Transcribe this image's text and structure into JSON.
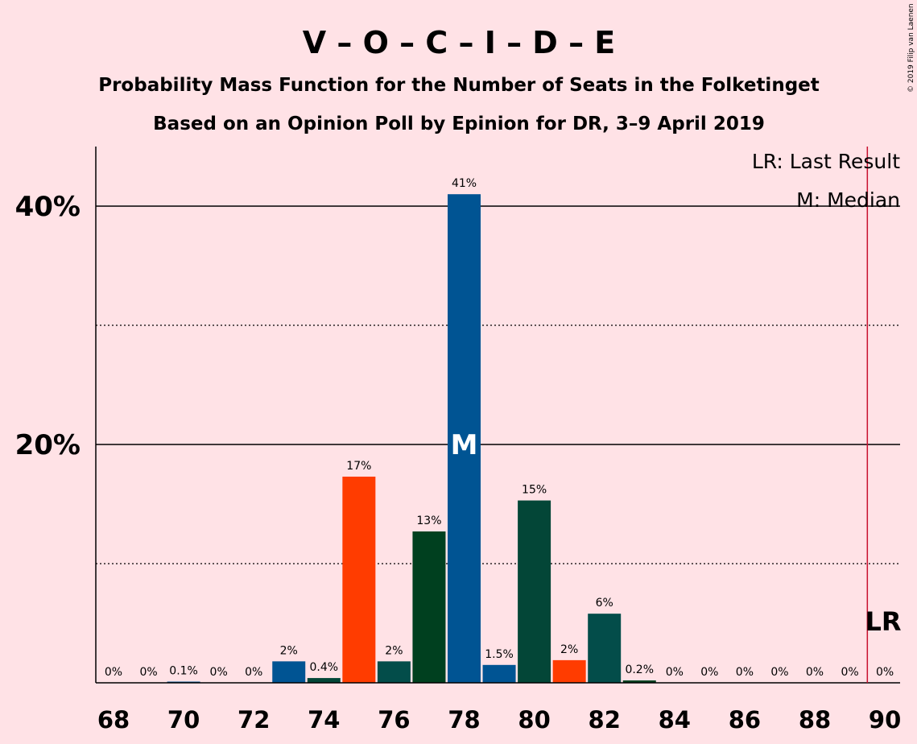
{
  "chart_data": {
    "type": "bar",
    "title": "V – O – C – I – D – E",
    "subtitle_lines": [
      "Probability Mass Function for the Number of Seats in the Folketinget",
      "Based on an Opinion Poll by Epinion for DR, 3–9 April 2019"
    ],
    "copyright": "© 2019 Filip van Laenen",
    "x_range": [
      68,
      90
    ],
    "x_tick_labels": [
      "68",
      "70",
      "72",
      "74",
      "76",
      "78",
      "80",
      "82",
      "84",
      "86",
      "88",
      "90"
    ],
    "ylim": [
      0,
      45
    ],
    "y_major_ticks": [
      {
        "value": 20,
        "label": "20%"
      },
      {
        "value": 40,
        "label": "40%"
      }
    ],
    "y_minor_gridlines": [
      10,
      30
    ],
    "bars": [
      {
        "seats": 68,
        "value": 0,
        "label": "0%",
        "color": "#005493"
      },
      {
        "seats": 69,
        "value": 0,
        "label": "0%",
        "color": "#005493"
      },
      {
        "seats": 70,
        "value": 0.1,
        "label": "0.1%",
        "color": "#005493"
      },
      {
        "seats": 71,
        "value": 0,
        "label": "0%",
        "color": "#005493"
      },
      {
        "seats": 72,
        "value": 0,
        "label": "0%",
        "color": "#005493"
      },
      {
        "seats": 73,
        "value": 1.8,
        "label": "2%",
        "color": "#005493"
      },
      {
        "seats": 74,
        "value": 0.4,
        "label": "0.4%",
        "color": "#034637"
      },
      {
        "seats": 75,
        "value": 17.3,
        "label": "17%",
        "color": "#FF3C00"
      },
      {
        "seats": 76,
        "value": 1.8,
        "label": "2%",
        "color": "#034D4A"
      },
      {
        "seats": 77,
        "value": 12.7,
        "label": "13%",
        "color": "#00401F"
      },
      {
        "seats": 78,
        "value": 41,
        "label": "41%",
        "color": "#005493"
      },
      {
        "seats": 79,
        "value": 1.5,
        "label": "1.5%",
        "color": "#005493"
      },
      {
        "seats": 80,
        "value": 15.3,
        "label": "15%",
        "color": "#034637"
      },
      {
        "seats": 81,
        "value": 1.9,
        "label": "2%",
        "color": "#FF3C00"
      },
      {
        "seats": 82,
        "value": 5.8,
        "label": "6%",
        "color": "#034D4A"
      },
      {
        "seats": 83,
        "value": 0.2,
        "label": "0.2%",
        "color": "#00401F"
      },
      {
        "seats": 84,
        "value": 0,
        "label": "0%",
        "color": "#005493"
      },
      {
        "seats": 85,
        "value": 0,
        "label": "0%",
        "color": "#005493"
      },
      {
        "seats": 86,
        "value": 0,
        "label": "0%",
        "color": "#005493"
      },
      {
        "seats": 87,
        "value": 0,
        "label": "0%",
        "color": "#005493"
      },
      {
        "seats": 88,
        "value": 0,
        "label": "0%",
        "color": "#005493"
      },
      {
        "seats": 89,
        "value": 0,
        "label": "0%",
        "color": "#005493"
      },
      {
        "seats": 90,
        "value": 0,
        "label": "0%",
        "color": "#005493"
      }
    ],
    "median": {
      "seats": 78,
      "mark": "M"
    },
    "last_result": {
      "seats": 89.5,
      "mark": "LR",
      "color": "#C8102E"
    },
    "legend": {
      "placement": "top-right",
      "entries": [
        "LR: Last Result",
        "M: Median"
      ]
    },
    "background": "#FFE2E6"
  }
}
